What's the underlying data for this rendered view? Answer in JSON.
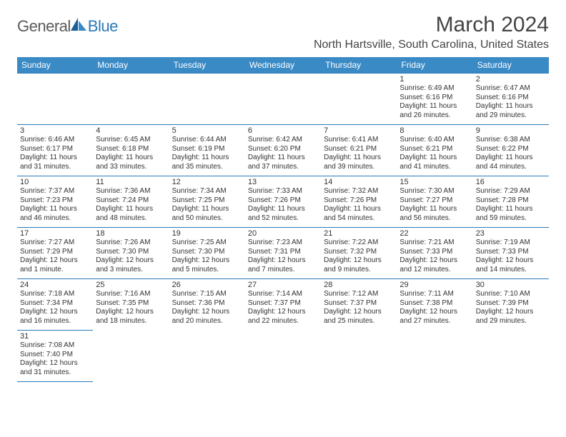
{
  "logo": {
    "word1": "General",
    "word2": "Blue"
  },
  "title": "March 2024",
  "subtitle": "North Hartsville, South Carolina, United States",
  "colors": {
    "header_bg": "#3a8ac6",
    "header_text": "#ffffff",
    "border": "#2a7ab8",
    "page_bg": "#ffffff",
    "text": "#333333",
    "logo_gray": "#5a5a5a",
    "logo_blue": "#2a7ab8"
  },
  "days_of_week": [
    "Sunday",
    "Monday",
    "Tuesday",
    "Wednesday",
    "Thursday",
    "Friday",
    "Saturday"
  ],
  "weeks": [
    [
      null,
      null,
      null,
      null,
      null,
      {
        "n": "1",
        "sr": "Sunrise: 6:49 AM",
        "ss": "Sunset: 6:16 PM",
        "dl": "Daylight: 11 hours and 26 minutes."
      },
      {
        "n": "2",
        "sr": "Sunrise: 6:47 AM",
        "ss": "Sunset: 6:16 PM",
        "dl": "Daylight: 11 hours and 29 minutes."
      }
    ],
    [
      {
        "n": "3",
        "sr": "Sunrise: 6:46 AM",
        "ss": "Sunset: 6:17 PM",
        "dl": "Daylight: 11 hours and 31 minutes."
      },
      {
        "n": "4",
        "sr": "Sunrise: 6:45 AM",
        "ss": "Sunset: 6:18 PM",
        "dl": "Daylight: 11 hours and 33 minutes."
      },
      {
        "n": "5",
        "sr": "Sunrise: 6:44 AM",
        "ss": "Sunset: 6:19 PM",
        "dl": "Daylight: 11 hours and 35 minutes."
      },
      {
        "n": "6",
        "sr": "Sunrise: 6:42 AM",
        "ss": "Sunset: 6:20 PM",
        "dl": "Daylight: 11 hours and 37 minutes."
      },
      {
        "n": "7",
        "sr": "Sunrise: 6:41 AM",
        "ss": "Sunset: 6:21 PM",
        "dl": "Daylight: 11 hours and 39 minutes."
      },
      {
        "n": "8",
        "sr": "Sunrise: 6:40 AM",
        "ss": "Sunset: 6:21 PM",
        "dl": "Daylight: 11 hours and 41 minutes."
      },
      {
        "n": "9",
        "sr": "Sunrise: 6:38 AM",
        "ss": "Sunset: 6:22 PM",
        "dl": "Daylight: 11 hours and 44 minutes."
      }
    ],
    [
      {
        "n": "10",
        "sr": "Sunrise: 7:37 AM",
        "ss": "Sunset: 7:23 PM",
        "dl": "Daylight: 11 hours and 46 minutes."
      },
      {
        "n": "11",
        "sr": "Sunrise: 7:36 AM",
        "ss": "Sunset: 7:24 PM",
        "dl": "Daylight: 11 hours and 48 minutes."
      },
      {
        "n": "12",
        "sr": "Sunrise: 7:34 AM",
        "ss": "Sunset: 7:25 PM",
        "dl": "Daylight: 11 hours and 50 minutes."
      },
      {
        "n": "13",
        "sr": "Sunrise: 7:33 AM",
        "ss": "Sunset: 7:26 PM",
        "dl": "Daylight: 11 hours and 52 minutes."
      },
      {
        "n": "14",
        "sr": "Sunrise: 7:32 AM",
        "ss": "Sunset: 7:26 PM",
        "dl": "Daylight: 11 hours and 54 minutes."
      },
      {
        "n": "15",
        "sr": "Sunrise: 7:30 AM",
        "ss": "Sunset: 7:27 PM",
        "dl": "Daylight: 11 hours and 56 minutes."
      },
      {
        "n": "16",
        "sr": "Sunrise: 7:29 AM",
        "ss": "Sunset: 7:28 PM",
        "dl": "Daylight: 11 hours and 59 minutes."
      }
    ],
    [
      {
        "n": "17",
        "sr": "Sunrise: 7:27 AM",
        "ss": "Sunset: 7:29 PM",
        "dl": "Daylight: 12 hours and 1 minute."
      },
      {
        "n": "18",
        "sr": "Sunrise: 7:26 AM",
        "ss": "Sunset: 7:30 PM",
        "dl": "Daylight: 12 hours and 3 minutes."
      },
      {
        "n": "19",
        "sr": "Sunrise: 7:25 AM",
        "ss": "Sunset: 7:30 PM",
        "dl": "Daylight: 12 hours and 5 minutes."
      },
      {
        "n": "20",
        "sr": "Sunrise: 7:23 AM",
        "ss": "Sunset: 7:31 PM",
        "dl": "Daylight: 12 hours and 7 minutes."
      },
      {
        "n": "21",
        "sr": "Sunrise: 7:22 AM",
        "ss": "Sunset: 7:32 PM",
        "dl": "Daylight: 12 hours and 9 minutes."
      },
      {
        "n": "22",
        "sr": "Sunrise: 7:21 AM",
        "ss": "Sunset: 7:33 PM",
        "dl": "Daylight: 12 hours and 12 minutes."
      },
      {
        "n": "23",
        "sr": "Sunrise: 7:19 AM",
        "ss": "Sunset: 7:33 PM",
        "dl": "Daylight: 12 hours and 14 minutes."
      }
    ],
    [
      {
        "n": "24",
        "sr": "Sunrise: 7:18 AM",
        "ss": "Sunset: 7:34 PM",
        "dl": "Daylight: 12 hours and 16 minutes."
      },
      {
        "n": "25",
        "sr": "Sunrise: 7:16 AM",
        "ss": "Sunset: 7:35 PM",
        "dl": "Daylight: 12 hours and 18 minutes."
      },
      {
        "n": "26",
        "sr": "Sunrise: 7:15 AM",
        "ss": "Sunset: 7:36 PM",
        "dl": "Daylight: 12 hours and 20 minutes."
      },
      {
        "n": "27",
        "sr": "Sunrise: 7:14 AM",
        "ss": "Sunset: 7:37 PM",
        "dl": "Daylight: 12 hours and 22 minutes."
      },
      {
        "n": "28",
        "sr": "Sunrise: 7:12 AM",
        "ss": "Sunset: 7:37 PM",
        "dl": "Daylight: 12 hours and 25 minutes."
      },
      {
        "n": "29",
        "sr": "Sunrise: 7:11 AM",
        "ss": "Sunset: 7:38 PM",
        "dl": "Daylight: 12 hours and 27 minutes."
      },
      {
        "n": "30",
        "sr": "Sunrise: 7:10 AM",
        "ss": "Sunset: 7:39 PM",
        "dl": "Daylight: 12 hours and 29 minutes."
      }
    ],
    [
      {
        "n": "31",
        "sr": "Sunrise: 7:08 AM",
        "ss": "Sunset: 7:40 PM",
        "dl": "Daylight: 12 hours and 31 minutes."
      },
      null,
      null,
      null,
      null,
      null,
      null
    ]
  ]
}
